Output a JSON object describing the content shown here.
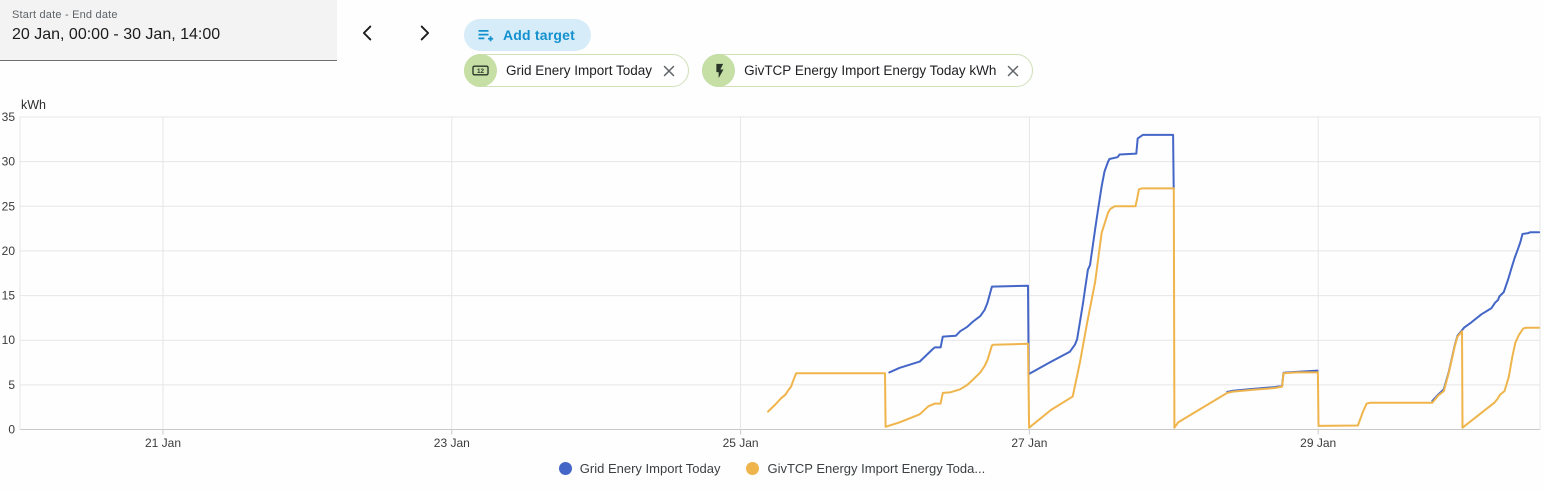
{
  "date_range": {
    "label": "Start date - End date",
    "value": "20 Jan, 00:00 - 30 Jan, 14:00"
  },
  "toolbar": {
    "add_target_label": "Add target"
  },
  "targets": [
    {
      "label": "Grid Enery Import Today",
      "icon": "counter-icon"
    },
    {
      "label": "GivTCP Energy Import Energy Today kWh",
      "icon": "flash-icon"
    }
  ],
  "colors": {
    "series_blue": "#4466c7",
    "series_orange": "#efb54c",
    "add_target_bg": "#d7ecf9",
    "add_target_fg": "#1291ce",
    "chip_avatar_bg": "#c5dfa5",
    "chip_icon": "#2a3529",
    "grid_line": "#e6e6e6",
    "axis_line": "#c9c9c9",
    "tick_text": "#3b3b3b"
  },
  "chart_data": {
    "type": "line",
    "unit": "kWh",
    "ylabel": "kWh",
    "ylim": [
      0,
      35
    ],
    "grid": true,
    "legend_position": "bottom",
    "yticks": [
      0,
      5,
      10,
      15,
      20,
      25,
      30,
      35
    ],
    "xticks": [
      {
        "day": 1,
        "label": "21 Jan"
      },
      {
        "day": 3,
        "label": "23 Jan"
      },
      {
        "day": 5,
        "label": "25 Jan"
      },
      {
        "day": 7,
        "label": "27 Jan"
      },
      {
        "day": 9,
        "label": "29 Jan"
      }
    ],
    "x_axis_note": "day = days since 20 Jan 00:00; range shown 0 to 10.53",
    "series": [
      {
        "name": "Grid Enery Import Today",
        "color": "#4466c7",
        "points": [
          [
            6.03,
            6.4
          ],
          [
            6.1,
            6.9
          ],
          [
            6.24,
            7.6
          ],
          [
            6.33,
            9.0
          ],
          [
            6.345,
            9.2
          ],
          [
            6.385,
            9.2
          ],
          [
            6.4,
            10.4
          ],
          [
            6.49,
            10.5
          ],
          [
            6.52,
            11.0
          ],
          [
            6.57,
            11.5
          ],
          [
            6.61,
            12.1
          ],
          [
            6.66,
            12.7
          ],
          [
            6.69,
            13.4
          ],
          [
            6.71,
            14.2
          ],
          [
            6.725,
            15.1
          ],
          [
            6.74,
            16.0
          ],
          [
            6.99,
            16.1
          ],
          [
            6.995,
            6.2
          ],
          [
            7.14,
            7.5
          ],
          [
            7.28,
            8.7
          ],
          [
            7.315,
            9.5
          ],
          [
            7.33,
            10.1
          ],
          [
            7.37,
            14.0
          ],
          [
            7.405,
            17.9
          ],
          [
            7.42,
            18.4
          ],
          [
            7.455,
            22.4
          ],
          [
            7.475,
            24.6
          ],
          [
            7.5,
            27.2
          ],
          [
            7.52,
            28.9
          ],
          [
            7.545,
            30.0
          ],
          [
            7.555,
            30.3
          ],
          [
            7.61,
            30.5
          ],
          [
            7.625,
            30.8
          ],
          [
            7.74,
            30.9
          ],
          [
            7.75,
            32.6
          ],
          [
            7.785,
            33.0
          ],
          [
            7.995,
            33.0
          ],
          [
            7.999,
            26.9
          ],
          null,
          [
            8.37,
            4.2
          ],
          [
            8.41,
            4.35
          ],
          [
            8.55,
            4.55
          ],
          [
            8.7,
            4.75
          ],
          [
            8.75,
            4.9
          ],
          [
            8.76,
            6.35
          ],
          [
            8.85,
            6.45
          ],
          [
            8.995,
            6.6
          ],
          null,
          [
            9.79,
            3.2
          ],
          [
            9.83,
            3.9
          ],
          [
            9.87,
            4.5
          ],
          [
            9.905,
            6.5
          ],
          [
            9.945,
            9.4
          ],
          [
            9.965,
            10.5
          ],
          [
            9.995,
            11.1
          ],
          [
            10.01,
            11.4
          ],
          [
            10.06,
            12.0
          ],
          [
            10.13,
            12.9
          ],
          [
            10.2,
            13.6
          ],
          [
            10.225,
            14.2
          ],
          [
            10.245,
            14.5
          ],
          [
            10.255,
            14.9
          ],
          [
            10.285,
            15.4
          ],
          [
            10.315,
            16.8
          ],
          [
            10.335,
            17.9
          ],
          [
            10.36,
            19.2
          ],
          [
            10.385,
            20.3
          ],
          [
            10.4,
            21.0
          ],
          [
            10.415,
            21.9
          ],
          [
            10.455,
            22.0
          ],
          [
            10.47,
            22.1
          ],
          [
            10.53,
            22.1
          ]
        ]
      },
      {
        "name": "GivTCP Energy Import Energy Today kWh",
        "color": "#efb54c",
        "points": [
          [
            5.19,
            2.0
          ],
          [
            5.24,
            2.8
          ],
          [
            5.28,
            3.5
          ],
          [
            5.31,
            3.9
          ],
          [
            5.33,
            4.4
          ],
          [
            5.35,
            4.8
          ],
          [
            5.365,
            5.5
          ],
          [
            5.385,
            6.3
          ],
          [
            6.0,
            6.3
          ],
          [
            6.004,
            0.3
          ],
          [
            6.1,
            0.8
          ],
          [
            6.24,
            1.7
          ],
          [
            6.3,
            2.6
          ],
          [
            6.345,
            2.9
          ],
          [
            6.385,
            2.9
          ],
          [
            6.4,
            4.1
          ],
          [
            6.45,
            4.15
          ],
          [
            6.52,
            4.5
          ],
          [
            6.57,
            5.0
          ],
          [
            6.61,
            5.6
          ],
          [
            6.66,
            6.4
          ],
          [
            6.69,
            7.1
          ],
          [
            6.71,
            7.8
          ],
          [
            6.725,
            8.6
          ],
          [
            6.74,
            9.4
          ],
          [
            6.75,
            9.5
          ],
          [
            6.99,
            9.6
          ],
          [
            6.998,
            0.2
          ],
          [
            7.15,
            2.2
          ],
          [
            7.28,
            3.5
          ],
          [
            7.3,
            3.7
          ],
          [
            7.35,
            7.5
          ],
          [
            7.4,
            12.0
          ],
          [
            7.455,
            16.5
          ],
          [
            7.5,
            22.0
          ],
          [
            7.545,
            24.3
          ],
          [
            7.56,
            24.7
          ],
          [
            7.59,
            25.0
          ],
          [
            7.735,
            25.0
          ],
          [
            7.748,
            26.0
          ],
          [
            7.758,
            26.9
          ],
          [
            7.78,
            27.0
          ],
          [
            8.0,
            27.0
          ],
          [
            8.004,
            0.2
          ],
          [
            8.03,
            0.8
          ],
          [
            8.37,
            4.1
          ],
          [
            8.41,
            4.25
          ],
          [
            8.55,
            4.45
          ],
          [
            8.7,
            4.65
          ],
          [
            8.75,
            4.8
          ],
          [
            8.76,
            6.3
          ],
          [
            8.85,
            6.4
          ],
          [
            8.998,
            6.4
          ],
          [
            9.002,
            0.4
          ],
          [
            9.275,
            0.45
          ],
          [
            9.31,
            2.0
          ],
          [
            9.335,
            2.9
          ],
          [
            9.36,
            3.0
          ],
          [
            9.79,
            3.0
          ],
          [
            9.83,
            3.8
          ],
          [
            9.87,
            4.3
          ],
          [
            9.905,
            6.4
          ],
          [
            9.945,
            9.3
          ],
          [
            9.965,
            10.4
          ],
          [
            9.996,
            11.0
          ],
          [
            9.999,
            0.2
          ],
          [
            10.22,
            3.0
          ],
          [
            10.24,
            3.4
          ],
          [
            10.26,
            3.9
          ],
          [
            10.29,
            4.3
          ],
          [
            10.32,
            5.9
          ],
          [
            10.345,
            8.2
          ],
          [
            10.365,
            9.7
          ],
          [
            10.39,
            10.6
          ],
          [
            10.42,
            11.3
          ],
          [
            10.44,
            11.4
          ],
          [
            10.53,
            11.4
          ]
        ]
      }
    ],
    "legend": [
      {
        "label": "Grid Enery Import Today"
      },
      {
        "label": "GivTCP Energy Import Energy Toda..."
      }
    ]
  }
}
